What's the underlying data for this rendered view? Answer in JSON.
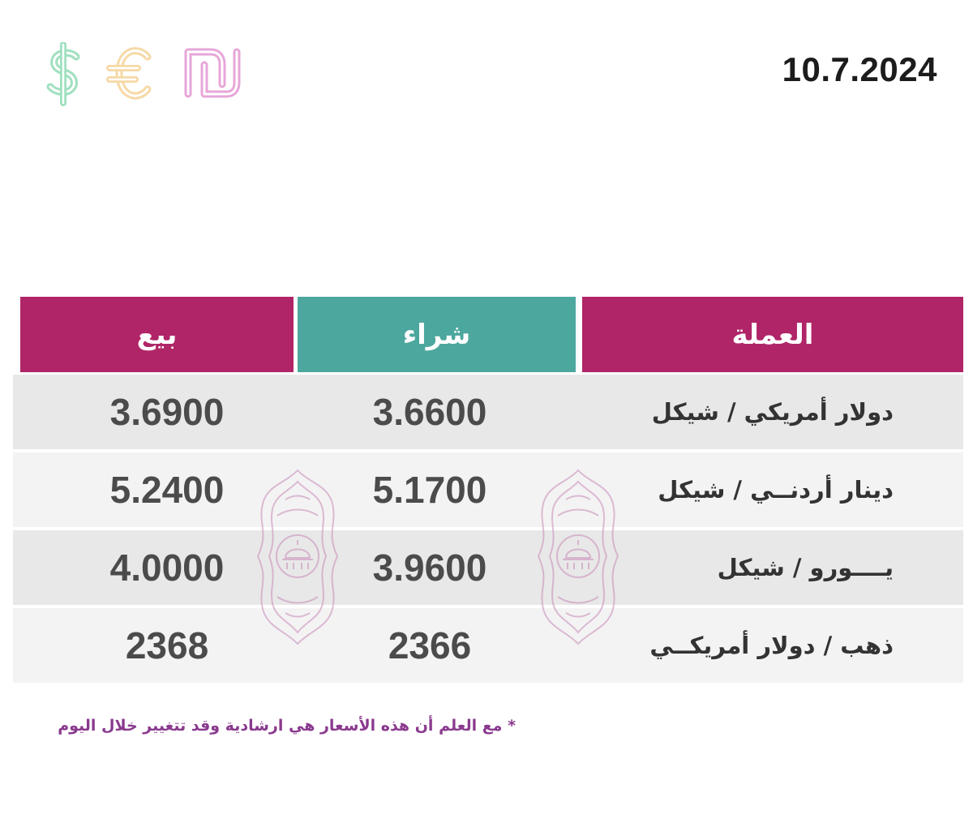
{
  "header": {
    "date": "10.7.2024",
    "currency_icons": [
      "dollar-icon",
      "euro-icon",
      "shekel-icon"
    ]
  },
  "table": {
    "columns": {
      "sell": "بيع",
      "buy": "شراء",
      "currency": "العملة"
    },
    "rows": [
      {
        "currency": "دولار أمريكي / شيكل",
        "buy": "3.6600",
        "sell": "3.6900"
      },
      {
        "currency": "دينار أردنــي / شيكل",
        "buy": "5.1700",
        "sell": "5.2400"
      },
      {
        "currency": "يــــورو / شيكل",
        "buy": "3.9600",
        "sell": "4.0000"
      },
      {
        "currency": "ذهب / دولار أمريكــي",
        "buy": "2366",
        "sell": "2368"
      }
    ]
  },
  "footnote": "* مع العلم أن هذه الأسعار هي ارشادية وقد تتغيير خلال اليوم",
  "colors": {
    "magenta": "#b02567",
    "teal": "#4ca79e",
    "dollar_icon": "#9fe0bf",
    "euro_icon": "#f6d9a6",
    "shekel_icon": "#e7a6d8",
    "note_text": "#8a3a8e"
  }
}
